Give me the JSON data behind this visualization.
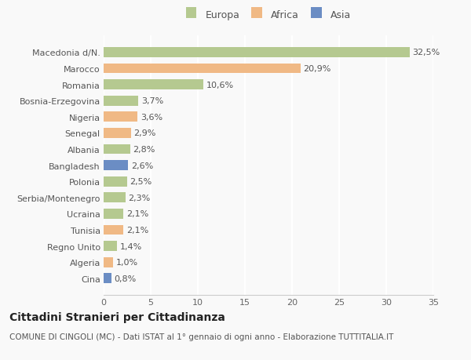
{
  "categories": [
    "Cina",
    "Algeria",
    "Regno Unito",
    "Tunisia",
    "Ucraina",
    "Serbia/Montenegro",
    "Polonia",
    "Bangladesh",
    "Albania",
    "Senegal",
    "Nigeria",
    "Bosnia-Erzegovina",
    "Romania",
    "Marocco",
    "Macedonia d/N."
  ],
  "values": [
    0.8,
    1.0,
    1.4,
    2.1,
    2.1,
    2.3,
    2.5,
    2.6,
    2.8,
    2.9,
    3.6,
    3.7,
    10.6,
    20.9,
    32.5
  ],
  "labels": [
    "0,8%",
    "1,0%",
    "1,4%",
    "2,1%",
    "2,1%",
    "2,3%",
    "2,5%",
    "2,6%",
    "2,8%",
    "2,9%",
    "3,6%",
    "3,7%",
    "10,6%",
    "20,9%",
    "32,5%"
  ],
  "continents": [
    "Asia",
    "Africa",
    "Europa",
    "Africa",
    "Europa",
    "Europa",
    "Europa",
    "Asia",
    "Europa",
    "Africa",
    "Africa",
    "Europa",
    "Europa",
    "Africa",
    "Europa"
  ],
  "colors": {
    "Europa": "#b5c990",
    "Africa": "#f0b985",
    "Asia": "#6b8dc4"
  },
  "title": "Cittadini Stranieri per Cittadinanza",
  "subtitle": "COMUNE DI CINGOLI (MC) - Dati ISTAT al 1° gennaio di ogni anno - Elaborazione TUTTITALIA.IT",
  "xlim": [
    0,
    35
  ],
  "xticks": [
    0,
    5,
    10,
    15,
    20,
    25,
    30,
    35
  ],
  "background_color": "#f9f9f9",
  "grid_color": "#ffffff",
  "bar_height": 0.62,
  "title_fontsize": 10,
  "subtitle_fontsize": 7.5,
  "tick_fontsize": 8,
  "label_fontsize": 8
}
